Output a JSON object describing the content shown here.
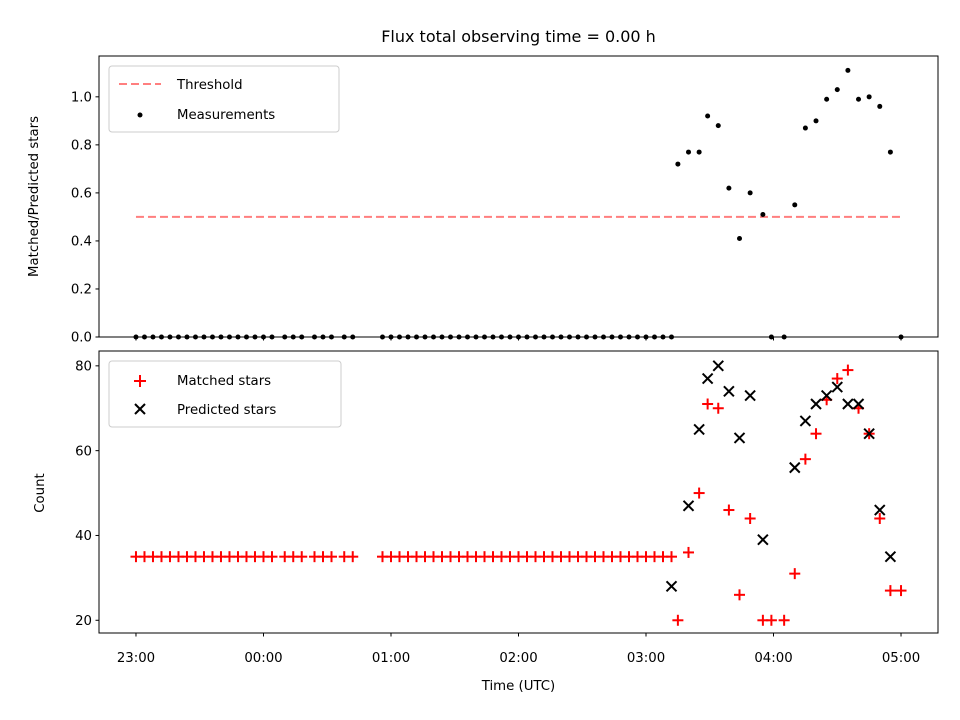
{
  "chart_data": {
    "title": "Flux total observing time = 0.00 h",
    "xlabel": "Time (UTC)",
    "x_ticks": [
      "23:00",
      "00:00",
      "01:00",
      "02:00",
      "03:00",
      "04:00",
      "05:00"
    ],
    "x_tick_hours": [
      0,
      1,
      2,
      3,
      4,
      5,
      6
    ],
    "x_range_hours": [
      -0.29,
      6.29
    ],
    "x_origin": "23:00",
    "panels": [
      {
        "type": "scatter",
        "ylabel": "Matched/Predicted stars",
        "ylim": [
          0,
          1.17
        ],
        "y_ticks": [
          0.0,
          0.2,
          0.4,
          0.6,
          0.8,
          1.0
        ],
        "y_tick_labels": [
          "0.0",
          "0.2",
          "0.4",
          "0.6",
          "0.8",
          "1.0"
        ],
        "legend_position": "top-left",
        "threshold": {
          "name": "Threshold",
          "value": 0.5,
          "x_range": [
            "23:00",
            "05:00"
          ],
          "color": "#ff7f7f"
        },
        "series": [
          {
            "name": "Measurements",
            "color": "#000000",
            "marker": "dot",
            "points": [
              [
                "23:00",
                0
              ],
              [
                "23:04",
                0
              ],
              [
                "23:08",
                0
              ],
              [
                "23:12",
                0
              ],
              [
                "23:16",
                0
              ],
              [
                "23:20",
                0
              ],
              [
                "23:24",
                0
              ],
              [
                "23:28",
                0
              ],
              [
                "23:32",
                0
              ],
              [
                "23:36",
                0
              ],
              [
                "23:40",
                0
              ],
              [
                "23:44",
                0
              ],
              [
                "23:48",
                0
              ],
              [
                "23:52",
                0
              ],
              [
                "23:56",
                0
              ],
              [
                "00:00",
                0
              ],
              [
                "00:04",
                0
              ],
              [
                "00:10",
                0
              ],
              [
                "00:14",
                0
              ],
              [
                "00:18",
                0
              ],
              [
                "00:24",
                0
              ],
              [
                "00:28",
                0
              ],
              [
                "00:32",
                0
              ],
              [
                "00:38",
                0
              ],
              [
                "00:42",
                0
              ],
              [
                "00:56",
                0
              ],
              [
                "01:00",
                0
              ],
              [
                "01:04",
                0
              ],
              [
                "01:08",
                0
              ],
              [
                "01:12",
                0
              ],
              [
                "01:16",
                0
              ],
              [
                "01:20",
                0
              ],
              [
                "01:24",
                0
              ],
              [
                "01:28",
                0
              ],
              [
                "01:32",
                0
              ],
              [
                "01:36",
                0
              ],
              [
                "01:40",
                0
              ],
              [
                "01:44",
                0
              ],
              [
                "01:48",
                0
              ],
              [
                "01:52",
                0
              ],
              [
                "01:56",
                0
              ],
              [
                "02:00",
                0
              ],
              [
                "02:04",
                0
              ],
              [
                "02:08",
                0
              ],
              [
                "02:12",
                0
              ],
              [
                "02:16",
                0
              ],
              [
                "02:20",
                0
              ],
              [
                "02:24",
                0
              ],
              [
                "02:28",
                0
              ],
              [
                "02:32",
                0
              ],
              [
                "02:36",
                0
              ],
              [
                "02:40",
                0
              ],
              [
                "02:44",
                0
              ],
              [
                "02:48",
                0
              ],
              [
                "02:52",
                0
              ],
              [
                "02:56",
                0
              ],
              [
                "03:00",
                0
              ],
              [
                "03:04",
                0
              ],
              [
                "03:08",
                0
              ],
              [
                "03:12",
                0
              ],
              [
                "03:15",
                0.72
              ],
              [
                "03:20",
                0.77
              ],
              [
                "03:25",
                0.77
              ],
              [
                "03:29",
                0.92
              ],
              [
                "03:34",
                0.88
              ],
              [
                "03:39",
                0.62
              ],
              [
                "03:44",
                0.41
              ],
              [
                "03:49",
                0.6
              ],
              [
                "03:55",
                0.51
              ],
              [
                "03:59",
                0
              ],
              [
                "04:05",
                0
              ],
              [
                "04:10",
                0.55
              ],
              [
                "04:15",
                0.87
              ],
              [
                "04:20",
                0.9
              ],
              [
                "04:25",
                0.99
              ],
              [
                "04:30",
                1.03
              ],
              [
                "04:35",
                1.11
              ],
              [
                "04:40",
                0.99
              ],
              [
                "04:45",
                1.0
              ],
              [
                "04:50",
                0.96
              ],
              [
                "04:55",
                0.77
              ],
              [
                "05:00",
                0
              ]
            ]
          }
        ]
      },
      {
        "type": "scatter",
        "ylabel": "Count",
        "ylim": [
          17,
          83.5
        ],
        "y_ticks": [
          20,
          40,
          60,
          80
        ],
        "y_tick_labels": [
          "20",
          "40",
          "60",
          "80"
        ],
        "legend_position": "top-left",
        "series": [
          {
            "name": "Matched stars",
            "color": "#ff0000",
            "marker": "plus",
            "points": [
              [
                "23:00",
                35
              ],
              [
                "23:04",
                35
              ],
              [
                "23:08",
                35
              ],
              [
                "23:12",
                35
              ],
              [
                "23:16",
                35
              ],
              [
                "23:20",
                35
              ],
              [
                "23:24",
                35
              ],
              [
                "23:28",
                35
              ],
              [
                "23:32",
                35
              ],
              [
                "23:36",
                35
              ],
              [
                "23:40",
                35
              ],
              [
                "23:44",
                35
              ],
              [
                "23:48",
                35
              ],
              [
                "23:52",
                35
              ],
              [
                "23:56",
                35
              ],
              [
                "00:00",
                35
              ],
              [
                "00:04",
                35
              ],
              [
                "00:10",
                35
              ],
              [
                "00:14",
                35
              ],
              [
                "00:18",
                35
              ],
              [
                "00:24",
                35
              ],
              [
                "00:28",
                35
              ],
              [
                "00:32",
                35
              ],
              [
                "00:38",
                35
              ],
              [
                "00:42",
                35
              ],
              [
                "00:56",
                35
              ],
              [
                "01:00",
                35
              ],
              [
                "01:04",
                35
              ],
              [
                "01:08",
                35
              ],
              [
                "01:12",
                35
              ],
              [
                "01:16",
                35
              ],
              [
                "01:20",
                35
              ],
              [
                "01:24",
                35
              ],
              [
                "01:28",
                35
              ],
              [
                "01:32",
                35
              ],
              [
                "01:36",
                35
              ],
              [
                "01:40",
                35
              ],
              [
                "01:44",
                35
              ],
              [
                "01:48",
                35
              ],
              [
                "01:52",
                35
              ],
              [
                "01:56",
                35
              ],
              [
                "02:00",
                35
              ],
              [
                "02:04",
                35
              ],
              [
                "02:08",
                35
              ],
              [
                "02:12",
                35
              ],
              [
                "02:16",
                35
              ],
              [
                "02:20",
                35
              ],
              [
                "02:24",
                35
              ],
              [
                "02:28",
                35
              ],
              [
                "02:32",
                35
              ],
              [
                "02:36",
                35
              ],
              [
                "02:40",
                35
              ],
              [
                "02:44",
                35
              ],
              [
                "02:48",
                35
              ],
              [
                "02:52",
                35
              ],
              [
                "02:56",
                35
              ],
              [
                "03:00",
                35
              ],
              [
                "03:04",
                35
              ],
              [
                "03:08",
                35
              ],
              [
                "03:12",
                35
              ],
              [
                "03:15",
                20
              ],
              [
                "03:20",
                36
              ],
              [
                "03:25",
                50
              ],
              [
                "03:29",
                71
              ],
              [
                "03:34",
                70
              ],
              [
                "03:39",
                46
              ],
              [
                "03:44",
                26
              ],
              [
                "03:49",
                44
              ],
              [
                "03:55",
                20
              ],
              [
                "03:59",
                20
              ],
              [
                "04:05",
                20
              ],
              [
                "04:10",
                31
              ],
              [
                "04:15",
                58
              ],
              [
                "04:20",
                64
              ],
              [
                "04:25",
                72
              ],
              [
                "04:30",
                77
              ],
              [
                "04:35",
                79
              ],
              [
                "04:40",
                70
              ],
              [
                "04:45",
                64
              ],
              [
                "04:50",
                44
              ],
              [
                "04:55",
                27
              ],
              [
                "05:00",
                27
              ]
            ]
          },
          {
            "name": "Predicted stars",
            "color": "#000000",
            "marker": "x",
            "points": [
              [
                "03:12",
                28
              ],
              [
                "03:20",
                47
              ],
              [
                "03:25",
                65
              ],
              [
                "03:29",
                77
              ],
              [
                "03:34",
                80
              ],
              [
                "03:39",
                74
              ],
              [
                "03:44",
                63
              ],
              [
                "03:49",
                73
              ],
              [
                "03:55",
                39
              ],
              [
                "04:10",
                56
              ],
              [
                "04:15",
                67
              ],
              [
                "04:20",
                71
              ],
              [
                "04:25",
                73
              ],
              [
                "04:30",
                75
              ],
              [
                "04:35",
                71
              ],
              [
                "04:40",
                71
              ],
              [
                "04:45",
                64
              ],
              [
                "04:50",
                46
              ],
              [
                "04:55",
                35
              ]
            ]
          }
        ]
      }
    ]
  }
}
